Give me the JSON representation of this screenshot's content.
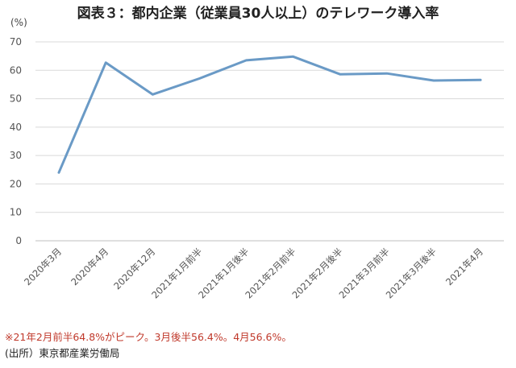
{
  "chart_data": {
    "type": "line",
    "title": "図表３：都内企業（従業員30人以上）のテレワーク導入率",
    "ylabel": "(%)",
    "xlabel": "",
    "ylim": [
      0,
      70
    ],
    "yticks": [
      0,
      10,
      20,
      30,
      40,
      50,
      60,
      70
    ],
    "grid": true,
    "categories": [
      "2020年3月",
      "2020年4月",
      "2020年12月",
      "2021年1月前半",
      "2021年1月後半",
      "2021年2月前半",
      "2021年2月後半",
      "2021年3月前半",
      "2021年3月後半",
      "2021年4月"
    ],
    "series": [
      {
        "values": [
          24.0,
          62.7,
          51.5,
          57.1,
          63.5,
          64.8,
          58.6,
          58.9,
          56.4,
          56.6
        ]
      }
    ],
    "line_color": "#6a9ac6"
  },
  "footnote": "※21年2月前半64.8%がピーク。3月後半56.4%。4月56.6%。",
  "source": "(出所）東京都産業労働局"
}
